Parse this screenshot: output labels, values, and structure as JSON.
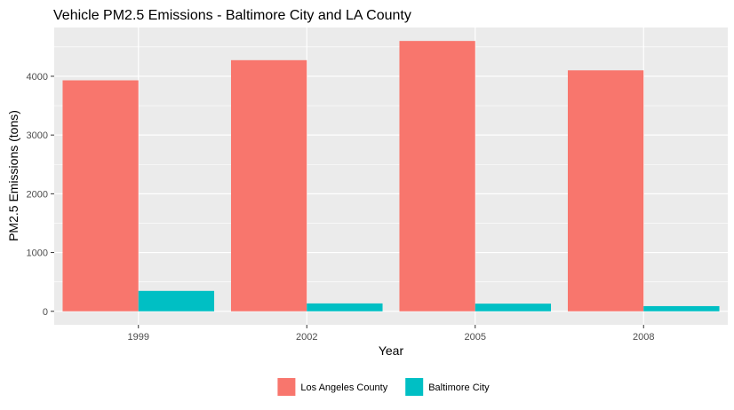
{
  "chart_data": {
    "type": "bar",
    "title": "Vehicle PM2.5 Emissions - Baltimore City and LA County",
    "xlabel": "Year",
    "ylabel": "PM2.5 Emissions (tons)",
    "categories": [
      "1999",
      "2002",
      "2005",
      "2008"
    ],
    "series": [
      {
        "name": "Los Angeles County",
        "color": "#F8766D",
        "values": [
          3931,
          4274,
          4601,
          4101
        ]
      },
      {
        "name": "Baltimore City",
        "color": "#00BFC4",
        "values": [
          347,
          134,
          130,
          88
        ]
      }
    ],
    "yticks": [
      0,
      1000,
      2000,
      3000,
      4000
    ],
    "ylim": [
      -230,
      4830
    ],
    "grid": true,
    "legend_position": "bottom",
    "panel_background": "#EBEBEB"
  }
}
